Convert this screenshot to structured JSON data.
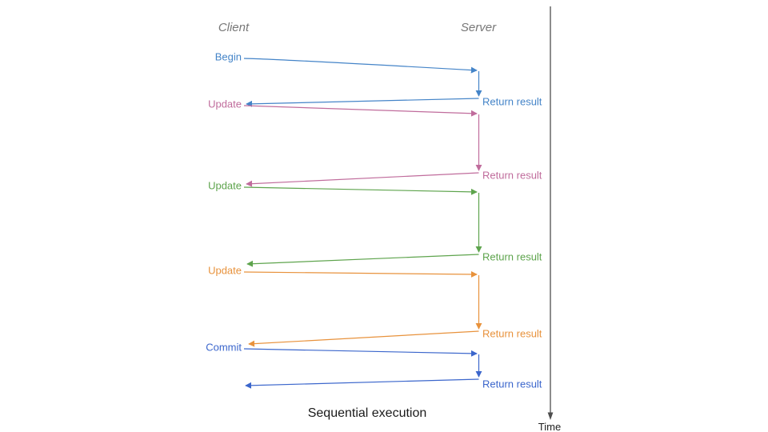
{
  "caption": "Sequential execution",
  "columns": {
    "client": "Client",
    "server": "Server"
  },
  "time_axis": {
    "label": "Time",
    "color": "#4d4d4d"
  },
  "colors": {
    "header_text": "#777777",
    "caption_text": "#1a1a1a"
  },
  "messages": [
    {
      "request": "Begin",
      "response": "Return result",
      "color": "#4484C8"
    },
    {
      "request": "Update",
      "response": "Return result",
      "color": "#C06C9C"
    },
    {
      "request": "Update",
      "response": "Return result",
      "color": "#5EA44D"
    },
    {
      "request": "Update",
      "response": "Return result",
      "color": "#E8923C"
    },
    {
      "request": "Commit",
      "response": "Return result",
      "color": "#3B66CC"
    }
  ]
}
